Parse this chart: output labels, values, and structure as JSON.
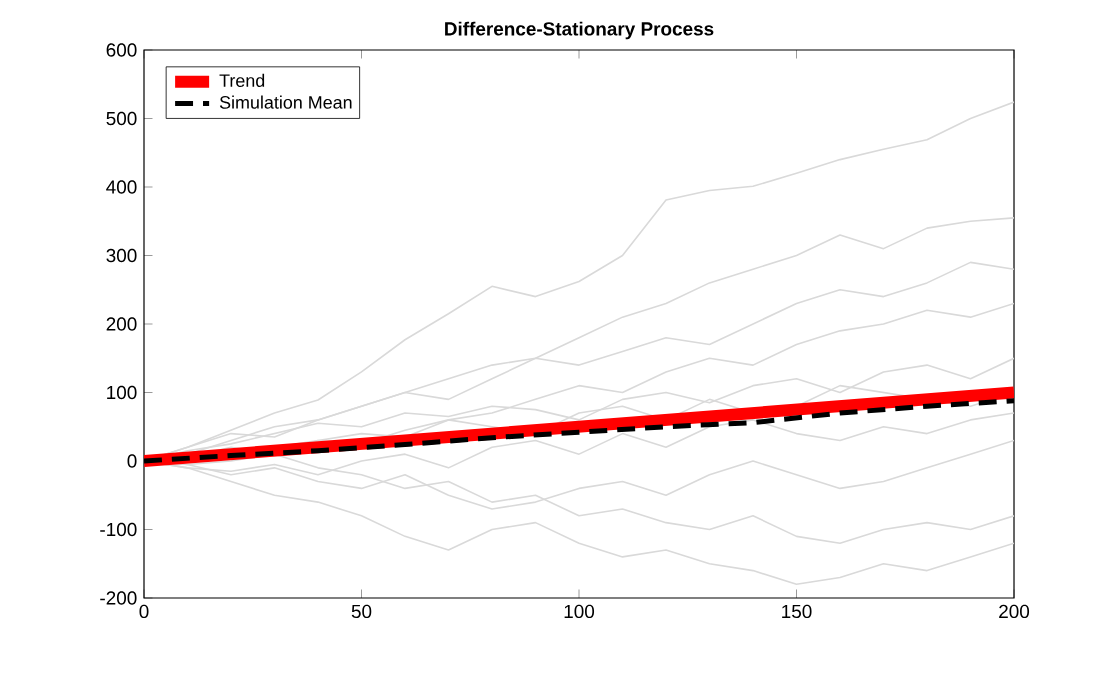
{
  "chart_data": {
    "type": "line",
    "title": "Difference-Stationary Process",
    "x": [
      0,
      10,
      20,
      30,
      40,
      50,
      60,
      70,
      80,
      90,
      100,
      110,
      120,
      130,
      140,
      150,
      160,
      170,
      180,
      190,
      200
    ],
    "series": [
      {
        "color": "#d9d9d9",
        "values": [
          0,
          20,
          45,
          70,
          89,
          130,
          177,
          215,
          255,
          240,
          262,
          300,
          381,
          395,
          401,
          420,
          440,
          455,
          469,
          500,
          524
        ]
      },
      {
        "color": "#d9d9d9",
        "values": [
          0,
          10,
          30,
          50,
          60,
          80,
          100,
          120,
          140,
          150,
          180,
          210,
          230,
          260,
          280,
          300,
          330,
          310,
          340,
          350,
          355
        ]
      },
      {
        "color": "#d9d9d9",
        "values": [
          0,
          -10,
          -30,
          -50,
          -60,
          -80,
          -110,
          -130,
          -100,
          -90,
          -120,
          -140,
          -130,
          -150,
          -160,
          -180,
          -170,
          -150,
          -160,
          -140,
          -120
        ]
      },
      {
        "color": "#d9d9d9",
        "values": [
          0,
          5,
          20,
          10,
          30,
          40,
          35,
          60,
          70,
          90,
          110,
          100,
          130,
          150,
          140,
          170,
          190,
          200,
          220,
          210,
          230
        ]
      },
      {
        "color": "#d9d9d9",
        "values": [
          0,
          -5,
          0,
          10,
          -10,
          -20,
          -40,
          -30,
          -60,
          -50,
          -80,
          -70,
          -90,
          -100,
          -80,
          -110,
          -120,
          -100,
          -90,
          -100,
          -80
        ]
      },
      {
        "color": "#d9d9d9",
        "values": [
          0,
          15,
          25,
          40,
          55,
          50,
          70,
          65,
          80,
          75,
          60,
          90,
          100,
          85,
          110,
          120,
          100,
          130,
          140,
          120,
          150
        ]
      },
      {
        "color": "#d9d9d9",
        "values": [
          0,
          -10,
          -15,
          -5,
          -20,
          0,
          10,
          -10,
          20,
          30,
          10,
          40,
          20,
          50,
          60,
          40,
          30,
          50,
          40,
          60,
          70
        ]
      },
      {
        "color": "#d9d9d9",
        "values": [
          0,
          10,
          5,
          20,
          30,
          25,
          45,
          60,
          50,
          40,
          70,
          80,
          60,
          90,
          70,
          80,
          110,
          100,
          90,
          80,
          100
        ]
      },
      {
        "color": "#d9d9d9",
        "values": [
          0,
          -5,
          -20,
          -10,
          -30,
          -40,
          -20,
          -50,
          -70,
          -60,
          -40,
          -30,
          -50,
          -20,
          0,
          -20,
          -40,
          -30,
          -10,
          10,
          30
        ]
      },
      {
        "color": "#d9d9d9",
        "values": [
          0,
          20,
          40,
          35,
          60,
          80,
          100,
          90,
          120,
          150,
          140,
          160,
          180,
          170,
          200,
          230,
          250,
          240,
          260,
          290,
          280
        ]
      },
      {
        "name": "Trend",
        "color": "#ff0000",
        "x": [
          0,
          200
        ],
        "values": [
          0,
          100
        ]
      },
      {
        "name": "Simulation Mean",
        "color": "#000000",
        "line_style": "dashed",
        "x": [
          0,
          20,
          40,
          60,
          80,
          100,
          120,
          140,
          160,
          180,
          200
        ],
        "values": [
          0,
          8,
          15,
          24,
          34,
          42,
          50,
          56,
          70,
          80,
          88
        ]
      }
    ],
    "xlim": [
      0,
      200
    ],
    "xticks": [
      0,
      50,
      100,
      150,
      200
    ],
    "ylim": [
      -200,
      600
    ],
    "yticks": [
      -200,
      -100,
      0,
      100,
      200,
      300,
      400,
      500,
      600
    ],
    "legend": "top left",
    "grid": false
  }
}
